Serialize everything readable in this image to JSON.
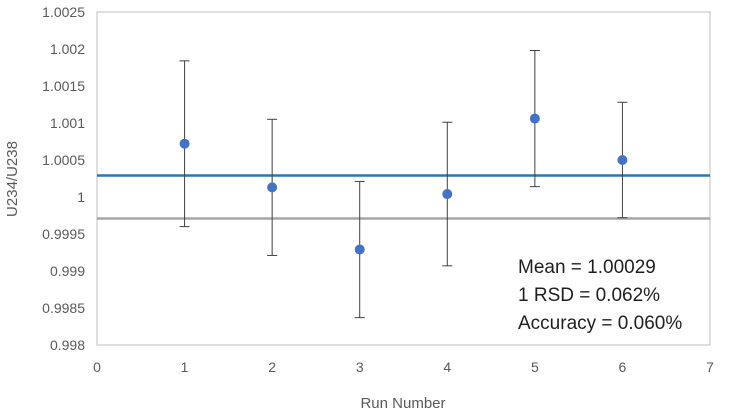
{
  "chart_data": {
    "type": "scatter",
    "xlabel": "Run Number",
    "ylabel": "U234/U238",
    "xlim": [
      0,
      7
    ],
    "ylim": [
      0.998,
      1.0025
    ],
    "x_ticks": [
      "0",
      "1",
      "2",
      "3",
      "4",
      "5",
      "6",
      "7"
    ],
    "y_ticks": [
      "0.998",
      "0.9985",
      "0.999",
      "0.9995",
      "1",
      "1.0005",
      "1.001",
      "1.0015",
      "1.002",
      "1.0025"
    ],
    "series": [
      {
        "x": [
          1,
          2,
          3,
          4,
          5,
          6
        ],
        "y": [
          1.00072,
          1.00013,
          0.99929,
          1.00004,
          1.00106,
          1.0005
        ],
        "error": [
          0.00112,
          0.00092,
          0.00092,
          0.00097,
          0.00092,
          0.00078
        ]
      }
    ],
    "reference_lines": [
      {
        "y": 1.00029,
        "color": "#2e75b6"
      },
      {
        "y": 0.99971,
        "color": "#a6a6a6"
      }
    ],
    "annotations": [
      "Mean = 1.00029",
      "1 RSD = 0.062%",
      "Accuracy = 0.060%"
    ],
    "colors": {
      "marker": "#4472c4",
      "errorbar": "#404040",
      "border": "#bfbfbf"
    },
    "grid": false,
    "legend": "none"
  }
}
